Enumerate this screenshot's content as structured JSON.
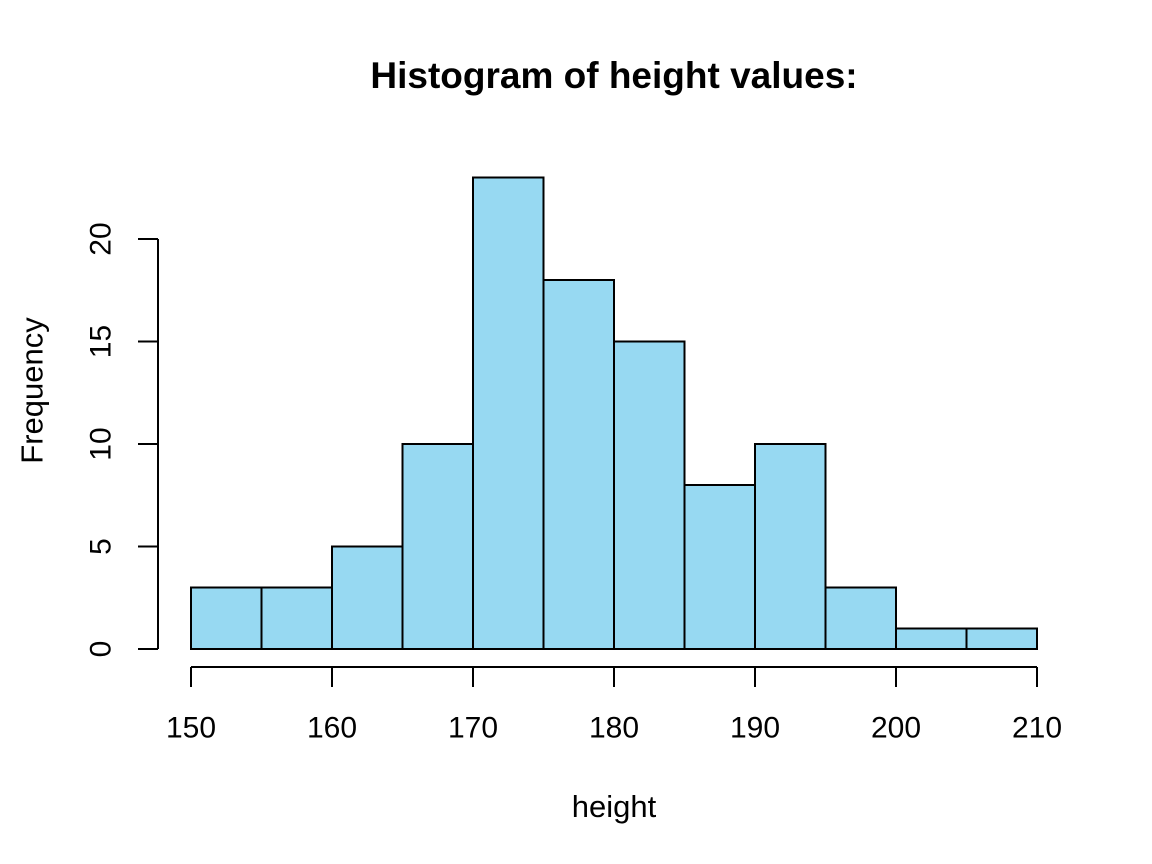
{
  "chart_data": {
    "type": "bar",
    "subtype": "histogram",
    "title": "Histogram of height values:",
    "xlabel": "height",
    "ylabel": "Frequency",
    "bin_edges": [
      150,
      155,
      160,
      165,
      170,
      175,
      180,
      185,
      190,
      195,
      200,
      205,
      210
    ],
    "counts": [
      3,
      3,
      5,
      10,
      23,
      18,
      15,
      8,
      10,
      3,
      1,
      1
    ],
    "x_ticks": [
      150,
      160,
      170,
      180,
      190,
      200,
      210
    ],
    "y_ticks": [
      0,
      5,
      10,
      15,
      20
    ],
    "xlim": [
      150,
      210
    ],
    "ylim": [
      0,
      23
    ],
    "grid": "off",
    "legend": "none",
    "colors": {
      "bar_fill": "#97D9F2",
      "bar_stroke": "#000000",
      "axis": "#000000",
      "text": "#000000",
      "background": "#FFFFFF"
    }
  }
}
